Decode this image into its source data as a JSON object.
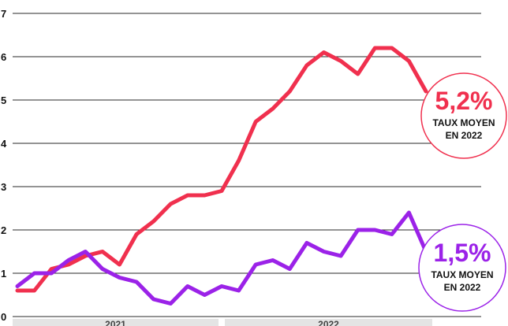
{
  "chart_data": {
    "type": "line",
    "title": "",
    "xlabel": "",
    "ylabel": "",
    "ylim": [
      0,
      7
    ],
    "yticks": [
      "0",
      "1",
      "2",
      "3",
      "4",
      "5",
      "6",
      "7"
    ],
    "grid": true,
    "x_groups": [
      {
        "label": "2021",
        "from": 0,
        "to": 12
      },
      {
        "label": "2022",
        "from": 12,
        "to": 24
      }
    ],
    "x": [
      0,
      1,
      2,
      3,
      4,
      5,
      6,
      7,
      8,
      9,
      10,
      11,
      12,
      13,
      14,
      15,
      16,
      17,
      18,
      19,
      20,
      21,
      22,
      23,
      24
    ],
    "series": [
      {
        "color": "#f0304e",
        "values": [
          0.6,
          0.6,
          1.1,
          1.2,
          1.4,
          1.5,
          1.2,
          1.9,
          2.2,
          2.6,
          2.8,
          2.8,
          2.9,
          3.6,
          4.5,
          4.8,
          5.2,
          5.8,
          6.1,
          5.9,
          5.6,
          6.2,
          6.2,
          5.9,
          5.2
        ],
        "callout": {
          "value": "5,2%",
          "line1": "TAUX MOYEN",
          "line2": "EN 2022"
        }
      },
      {
        "color": "#9b22e8",
        "values": [
          0.7,
          1.0,
          1.0,
          1.3,
          1.5,
          1.1,
          0.9,
          0.8,
          0.4,
          0.3,
          0.7,
          0.5,
          0.7,
          0.6,
          1.2,
          1.3,
          1.1,
          1.7,
          1.5,
          1.4,
          2.0,
          2.0,
          1.9,
          2.4,
          1.5
        ],
        "callout": {
          "value": "1,5%",
          "line1": "TAUX MOYEN",
          "line2": "EN 2022"
        }
      }
    ]
  }
}
